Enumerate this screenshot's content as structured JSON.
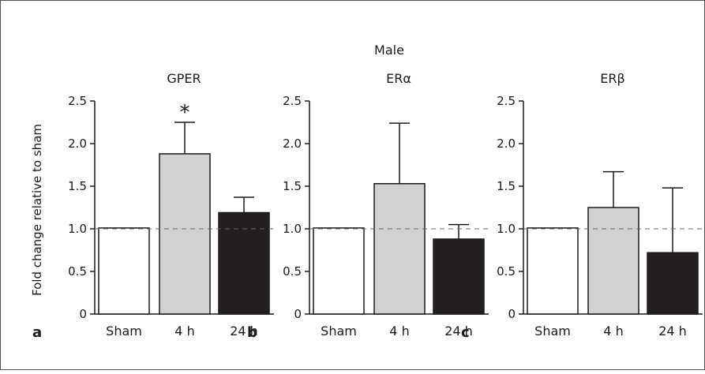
{
  "figure": {
    "supertitle": "Male",
    "ylabel": "Fold change relative to sham",
    "colors": {
      "frame": "#555555",
      "sham": "#ffffff",
      "h4": "#cfd1d3",
      "h24": "#231f20",
      "stroke": "#1a1a1a",
      "reference_line": "#666666"
    }
  },
  "chart_data": [
    {
      "type": "bar",
      "panel_letter": "a",
      "title": "GPER",
      "categories": [
        "Sham",
        "4 h",
        "24 h"
      ],
      "values": [
        1.01,
        1.88,
        1.19
      ],
      "error_upper": [
        null,
        2.25,
        1.37
      ],
      "ylim": [
        0,
        2.5
      ],
      "yticks": [
        "0",
        "0.5",
        "1.0",
        "1.5",
        "2.0",
        "2.5"
      ],
      "reference_line": 1.0,
      "annotations": [
        {
          "text": "*",
          "category": "4 h"
        }
      ]
    },
    {
      "type": "bar",
      "panel_letter": "b",
      "title": "ERα",
      "categories": [
        "Sham",
        "4 h",
        "24 h"
      ],
      "values": [
        1.01,
        1.53,
        0.88
      ],
      "error_upper": [
        null,
        2.24,
        1.05
      ],
      "ylim": [
        0,
        2.5
      ],
      "yticks": [
        "0",
        "0.5",
        "1.0",
        "1.5",
        "2.0",
        "2.5"
      ],
      "reference_line": 1.0,
      "annotations": []
    },
    {
      "type": "bar",
      "panel_letter": "c",
      "title": "ERβ",
      "categories": [
        "Sham",
        "4 h",
        "24 h"
      ],
      "values": [
        1.01,
        1.25,
        0.72
      ],
      "error_upper": [
        null,
        1.67,
        1.48
      ],
      "ylim": [
        0,
        2.5
      ],
      "yticks": [
        "0",
        "0.5",
        "1.0",
        "1.5",
        "2.0",
        "2.5"
      ],
      "reference_line": 1.0,
      "annotations": []
    }
  ]
}
